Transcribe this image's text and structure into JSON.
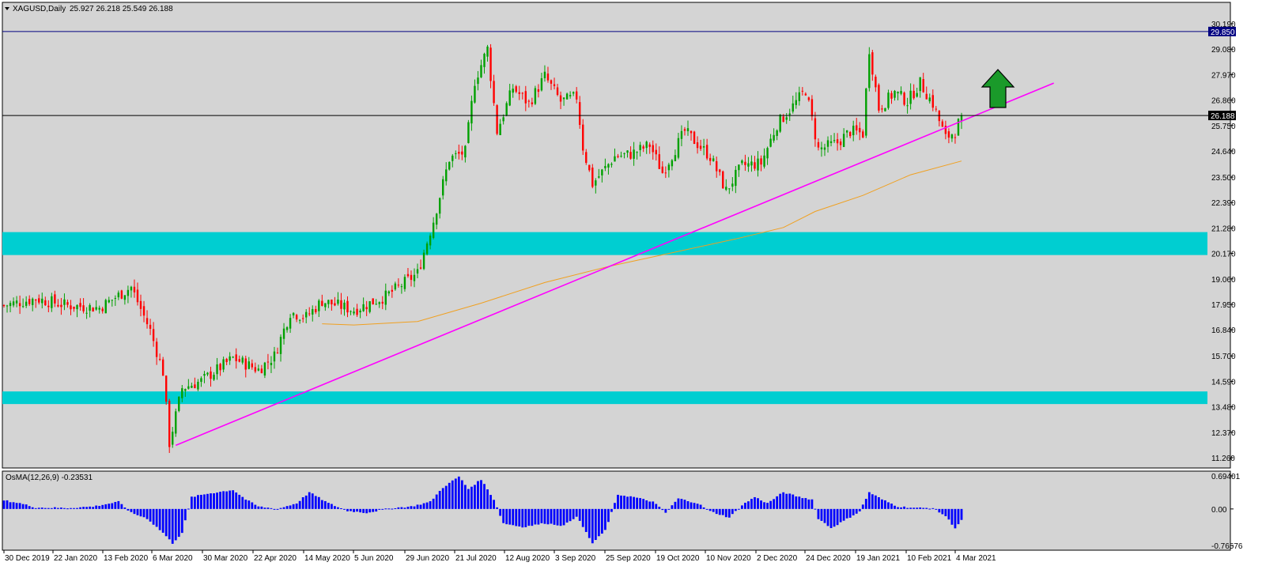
{
  "header": {
    "symbol_timeframe": "XAGUSD,Daily",
    "ohlc_text": "25.927 26.218 25.549 26.188"
  },
  "indicator": {
    "label": "OsMA(12,26,9) -0.23531"
  },
  "chart_data": [
    {
      "type": "candlestick",
      "title": "XAGUSD,Daily",
      "ylim": [
        11.26,
        30.19
      ],
      "y_ticks": [
        "30.190",
        "29.080",
        "27.970",
        "26.860",
        "25.750",
        "24.640",
        "23.500",
        "22.390",
        "21.280",
        "20.170",
        "19.060",
        "17.950",
        "16.840",
        "15.700",
        "14.590",
        "13.480",
        "12.370",
        "11.260"
      ],
      "x_ticks": [
        "30 Dec 2019",
        "22 Jan 2020",
        "13 Feb 2020",
        "6 Mar 2020",
        "30 Mar 2020",
        "22 Apr 2020",
        "14 May 2020",
        "5 Jun 2020",
        "29 Jun 2020",
        "21 Jul 2020",
        "12 Aug 2020",
        "3 Sep 2020",
        "25 Sep 2020",
        "19 Oct 2020",
        "10 Nov 2020",
        "2 Dec 2020",
        "24 Dec 2020",
        "19 Jan 2021",
        "10 Feb 2021",
        "4 Mar 2021"
      ],
      "close_path": [
        {
          "i": 0,
          "v": 17.9
        },
        {
          "i": 10,
          "v": 18.2
        },
        {
          "i": 20,
          "v": 17.9
        },
        {
          "i": 30,
          "v": 17.8
        },
        {
          "i": 40,
          "v": 18.7
        },
        {
          "i": 46,
          "v": 16.8
        },
        {
          "i": 50,
          "v": 15.0
        },
        {
          "i": 52,
          "v": 11.9
        },
        {
          "i": 56,
          "v": 14.3
        },
        {
          "i": 62,
          "v": 14.6
        },
        {
          "i": 72,
          "v": 15.6
        },
        {
          "i": 80,
          "v": 15.1
        },
        {
          "i": 85,
          "v": 15.7
        },
        {
          "i": 90,
          "v": 17.6
        },
        {
          "i": 95,
          "v": 17.4
        },
        {
          "i": 100,
          "v": 18.1
        },
        {
          "i": 110,
          "v": 17.7
        },
        {
          "i": 120,
          "v": 18.3
        },
        {
          "i": 130,
          "v": 19.3
        },
        {
          "i": 135,
          "v": 21.6
        },
        {
          "i": 140,
          "v": 24.3
        },
        {
          "i": 145,
          "v": 24.6
        },
        {
          "i": 148,
          "v": 27.7
        },
        {
          "i": 152,
          "v": 29.1
        },
        {
          "i": 155,
          "v": 25.5
        },
        {
          "i": 160,
          "v": 27.4
        },
        {
          "i": 165,
          "v": 26.7
        },
        {
          "i": 170,
          "v": 27.9
        },
        {
          "i": 175,
          "v": 26.8
        },
        {
          "i": 180,
          "v": 27.0
        },
        {
          "i": 182,
          "v": 24.8
        },
        {
          "i": 185,
          "v": 23.2
        },
        {
          "i": 192,
          "v": 24.4
        },
        {
          "i": 197,
          "v": 24.5
        },
        {
          "i": 203,
          "v": 24.9
        },
        {
          "i": 207,
          "v": 23.7
        },
        {
          "i": 214,
          "v": 25.5
        },
        {
          "i": 222,
          "v": 24.4
        },
        {
          "i": 227,
          "v": 22.9
        },
        {
          "i": 232,
          "v": 24.0
        },
        {
          "i": 238,
          "v": 24.1
        },
        {
          "i": 243,
          "v": 25.8
        },
        {
          "i": 248,
          "v": 26.6
        },
        {
          "i": 252,
          "v": 27.3
        },
        {
          "i": 256,
          "v": 24.7
        },
        {
          "i": 262,
          "v": 25.0
        },
        {
          "i": 266,
          "v": 25.5
        },
        {
          "i": 270,
          "v": 25.4
        },
        {
          "i": 272,
          "v": 29.1
        },
        {
          "i": 275,
          "v": 26.5
        },
        {
          "i": 280,
          "v": 27.2
        },
        {
          "i": 284,
          "v": 26.8
        },
        {
          "i": 288,
          "v": 27.6
        },
        {
          "i": 292,
          "v": 26.7
        },
        {
          "i": 296,
          "v": 25.2
        },
        {
          "i": 299,
          "v": 25.5
        },
        {
          "i": 301,
          "v": 26.188
        }
      ],
      "moving_average": [
        {
          "i": 100,
          "v": 17.1
        },
        {
          "i": 110,
          "v": 17.05
        },
        {
          "i": 130,
          "v": 17.2
        },
        {
          "i": 150,
          "v": 18.0
        },
        {
          "i": 170,
          "v": 18.9
        },
        {
          "i": 190,
          "v": 19.6
        },
        {
          "i": 210,
          "v": 20.2
        },
        {
          "i": 230,
          "v": 20.8
        },
        {
          "i": 245,
          "v": 21.3
        },
        {
          "i": 255,
          "v": 22.0
        },
        {
          "i": 270,
          "v": 22.7
        },
        {
          "i": 285,
          "v": 23.6
        },
        {
          "i": 301,
          "v": 24.2
        }
      ],
      "trendline": {
        "start": {
          "i": 54,
          "v": 11.8
        },
        "end": {
          "i": 330,
          "v": 27.6
        }
      },
      "horizontal_lines": [
        {
          "price": 29.85,
          "label": "29.850",
          "color": "#000080"
        },
        {
          "price": 26.188,
          "label": "26.188",
          "color": "#000000"
        }
      ],
      "zones": [
        {
          "low": 20.1,
          "high": 21.1,
          "color": "#00CED1"
        },
        {
          "low": 13.6,
          "high": 14.15,
          "color": "#00CED1"
        }
      ],
      "arrow": {
        "direction": "up",
        "color": "#1a9a2a"
      },
      "up_color": "#00a000",
      "down_color": "#ff0000",
      "background": "#d4d4d4",
      "grid": false
    },
    {
      "type": "histogram",
      "title": "OsMA(12,26,9) -0.23531",
      "ylim": [
        -0.76576,
        0.69401
      ],
      "y_ticks": [
        "0.69401",
        "0.00",
        "-0.76576"
      ],
      "color": "#0000ff",
      "values_path": [
        {
          "i": 0,
          "v": 0.18
        },
        {
          "i": 5,
          "v": 0.12
        },
        {
          "i": 10,
          "v": 0.03
        },
        {
          "i": 20,
          "v": 0.02
        },
        {
          "i": 28,
          "v": 0.05
        },
        {
          "i": 36,
          "v": 0.15
        },
        {
          "i": 40,
          "v": -0.08
        },
        {
          "i": 45,
          "v": -0.2
        },
        {
          "i": 50,
          "v": -0.5
        },
        {
          "i": 53,
          "v": -0.72
        },
        {
          "i": 56,
          "v": -0.5
        },
        {
          "i": 59,
          "v": 0.25
        },
        {
          "i": 64,
          "v": 0.32
        },
        {
          "i": 72,
          "v": 0.4
        },
        {
          "i": 76,
          "v": 0.2
        },
        {
          "i": 80,
          "v": 0.05
        },
        {
          "i": 86,
          "v": 0.0
        },
        {
          "i": 92,
          "v": 0.12
        },
        {
          "i": 96,
          "v": 0.35
        },
        {
          "i": 102,
          "v": 0.12
        },
        {
          "i": 108,
          "v": -0.04
        },
        {
          "i": 114,
          "v": -0.08
        },
        {
          "i": 122,
          "v": 0.02
        },
        {
          "i": 128,
          "v": 0.05
        },
        {
          "i": 134,
          "v": 0.15
        },
        {
          "i": 138,
          "v": 0.45
        },
        {
          "i": 143,
          "v": 0.68
        },
        {
          "i": 146,
          "v": 0.42
        },
        {
          "i": 150,
          "v": 0.62
        },
        {
          "i": 154,
          "v": 0.2
        },
        {
          "i": 157,
          "v": -0.3
        },
        {
          "i": 163,
          "v": -0.38
        },
        {
          "i": 170,
          "v": -0.3
        },
        {
          "i": 176,
          "v": -0.35
        },
        {
          "i": 180,
          "v": -0.15
        },
        {
          "i": 185,
          "v": -0.72
        },
        {
          "i": 189,
          "v": -0.45
        },
        {
          "i": 193,
          "v": 0.3
        },
        {
          "i": 198,
          "v": 0.25
        },
        {
          "i": 204,
          "v": 0.15
        },
        {
          "i": 208,
          "v": -0.08
        },
        {
          "i": 212,
          "v": 0.22
        },
        {
          "i": 218,
          "v": 0.12
        },
        {
          "i": 222,
          "v": -0.05
        },
        {
          "i": 228,
          "v": -0.18
        },
        {
          "i": 232,
          "v": 0.08
        },
        {
          "i": 236,
          "v": 0.25
        },
        {
          "i": 240,
          "v": 0.12
        },
        {
          "i": 245,
          "v": 0.35
        },
        {
          "i": 250,
          "v": 0.25
        },
        {
          "i": 254,
          "v": 0.2
        },
        {
          "i": 256,
          "v": -0.2
        },
        {
          "i": 260,
          "v": -0.4
        },
        {
          "i": 264,
          "v": -0.25
        },
        {
          "i": 269,
          "v": -0.05
        },
        {
          "i": 272,
          "v": 0.35
        },
        {
          "i": 276,
          "v": 0.2
        },
        {
          "i": 281,
          "v": 0.05
        },
        {
          "i": 287,
          "v": 0.02
        },
        {
          "i": 292,
          "v": 0.02
        },
        {
          "i": 296,
          "v": -0.15
        },
        {
          "i": 299,
          "v": -0.4
        },
        {
          "i": 301,
          "v": -0.23531
        }
      ]
    }
  ]
}
